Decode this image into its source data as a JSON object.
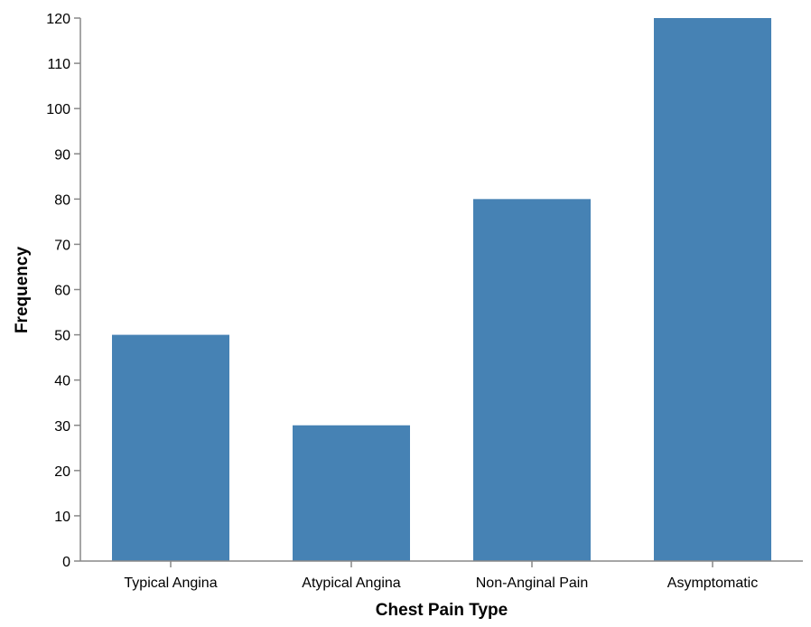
{
  "chart_data": {
    "type": "bar",
    "title": "",
    "xlabel": "Chest Pain Type",
    "ylabel": "Frequency",
    "categories": [
      "Typical Angina",
      "Atypical Angina",
      "Non-Anginal Pain",
      "Asymptomatic"
    ],
    "values": [
      50,
      30,
      80,
      120
    ],
    "ylim": [
      0,
      120
    ],
    "yticks": [
      0,
      10,
      20,
      30,
      40,
      50,
      60,
      70,
      80,
      90,
      100,
      110,
      120
    ],
    "grid": false,
    "bar_color": "#4682b4"
  }
}
